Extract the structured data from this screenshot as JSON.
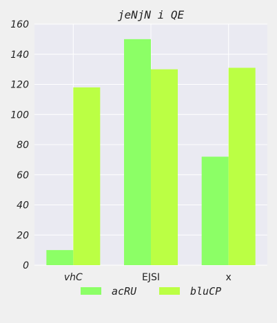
{
  "chart_data": {
    "type": "bar",
    "title": "jeNjN i QE",
    "categories": [
      "vhC",
      "EJSI",
      "x"
    ],
    "category_italic": [
      true,
      false,
      false
    ],
    "series": [
      {
        "name": "acRU",
        "color": "#8cff66",
        "values": [
          10,
          150,
          72
        ]
      },
      {
        "name": "bluCP",
        "color": "#bbff44",
        "values": [
          118,
          130,
          131
        ]
      }
    ],
    "ylim": [
      0,
      160
    ],
    "yticks": [
      0,
      20,
      40,
      60,
      80,
      100,
      120,
      140,
      160
    ],
    "grid": true,
    "legend": "bottom-center",
    "background": "#eaeaf2"
  }
}
